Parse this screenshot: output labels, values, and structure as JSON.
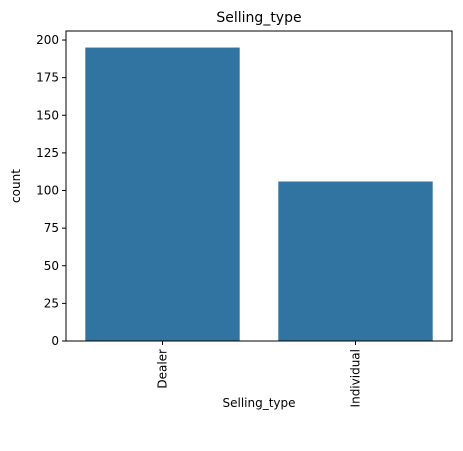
{
  "chart_data": {
    "type": "bar",
    "title": "Selling_type",
    "xlabel": "Selling_type",
    "ylabel": "count",
    "categories": [
      "Dealer",
      "Individual"
    ],
    "values": [
      195,
      106
    ],
    "ylim": [
      0,
      206
    ],
    "yticks": [
      0,
      25,
      50,
      75,
      100,
      125,
      150,
      175,
      200
    ],
    "xtick_rotation": "vertical",
    "grid": false,
    "legend": "none",
    "bar_color": "#3274a1",
    "axis_color": "#000000",
    "text_color": "#000000"
  }
}
